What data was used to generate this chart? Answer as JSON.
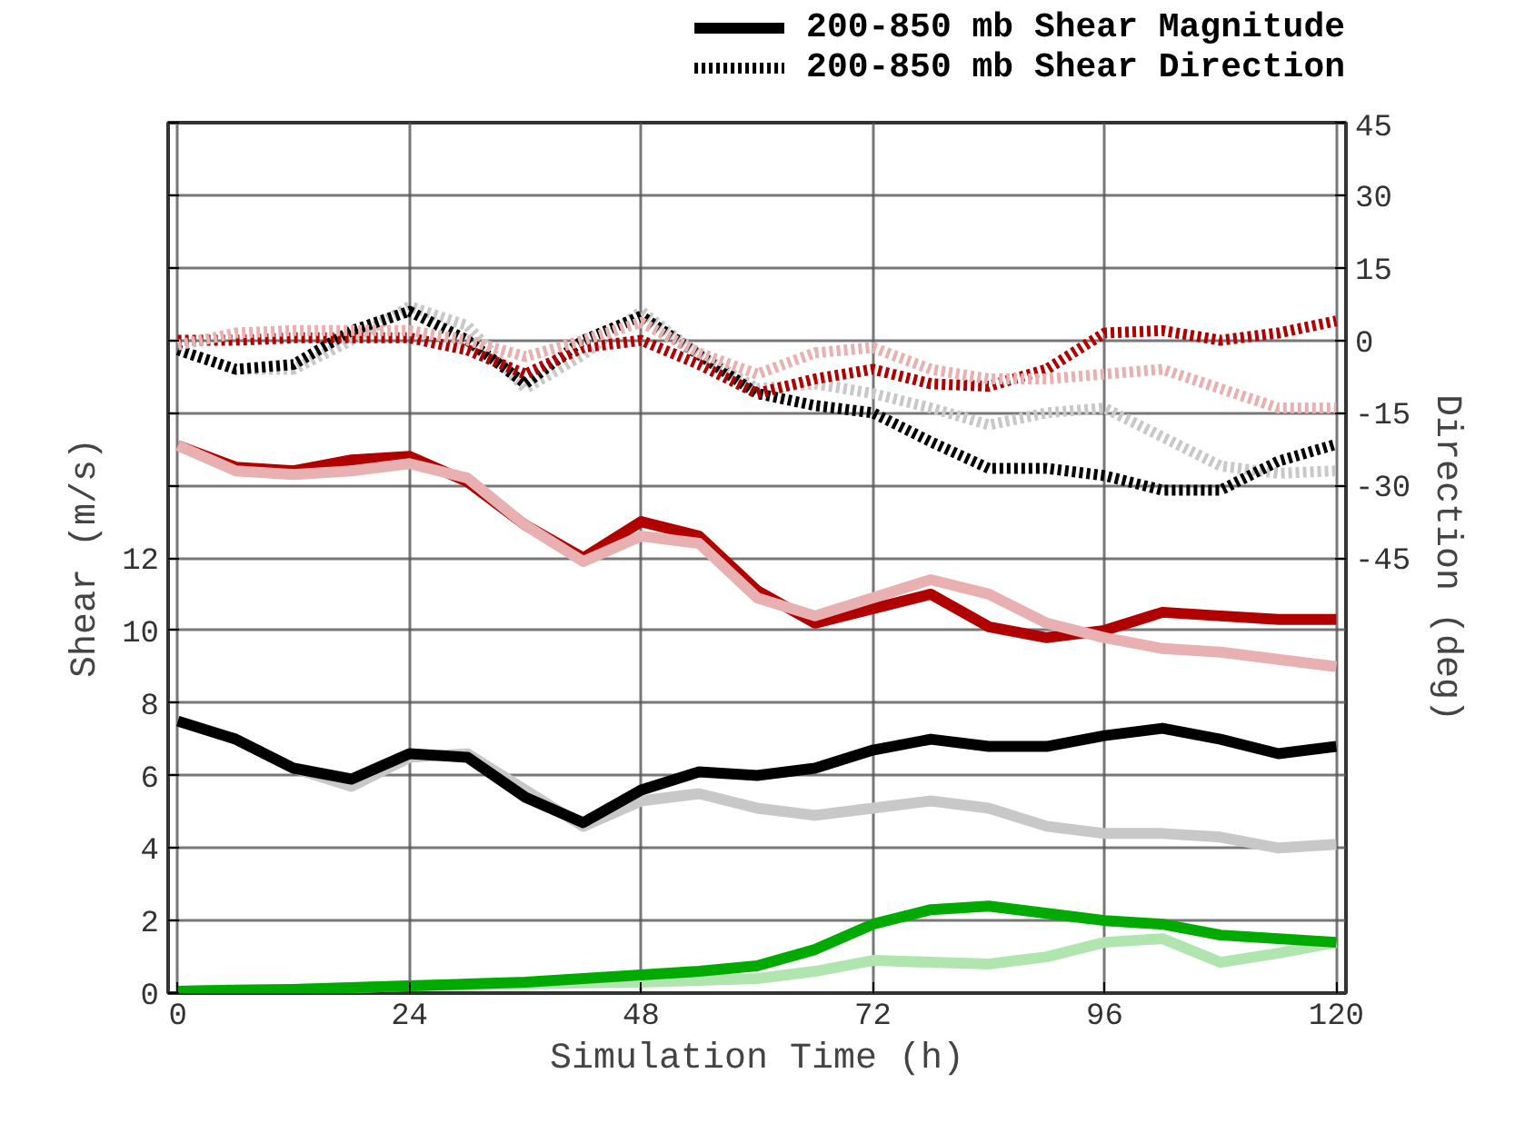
{
  "chart_data": {
    "type": "line",
    "xlabel": "Simulation Time (h)",
    "ylabel": "Shear (m/s)",
    "y2label": "Direction (deg)",
    "x": [
      0,
      6,
      12,
      18,
      24,
      30,
      36,
      42,
      48,
      54,
      60,
      66,
      72,
      78,
      84,
      90,
      96,
      102,
      108,
      114,
      120
    ],
    "xlim": [
      -1,
      121
    ],
    "xticks": [
      0,
      24,
      48,
      72,
      96,
      120
    ],
    "ylim": [
      0,
      24
    ],
    "yticks": [
      0,
      2,
      4,
      6,
      8,
      10,
      12,
      {
        "value": 14,
        "label": null
      },
      {
        "value": 16,
        "label": null
      },
      {
        "value": 18,
        "label": null
      },
      {
        "value": 20,
        "label": null
      },
      {
        "value": 22,
        "label": null
      },
      {
        "value": 24,
        "label": null
      }
    ],
    "y2lim": [
      -135,
      45
    ],
    "y2ticks": [
      -45,
      -30,
      -15,
      0,
      15,
      30,
      45
    ],
    "grid": true,
    "legend": "top",
    "series": [
      {
        "color": "#b00000",
        "line_style": "solid",
        "values": [
          15.1,
          14.5,
          14.4,
          14.7,
          14.8,
          14.1,
          12.9,
          12.0,
          13.0,
          12.6,
          11.1,
          10.2,
          10.6,
          11.0,
          10.1,
          9.8,
          10.0,
          10.5,
          10.4,
          10.3,
          10.3
        ]
      },
      {
        "color": "#e8b0b0",
        "line_style": "solid",
        "values": [
          15.1,
          14.4,
          14.3,
          14.4,
          14.6,
          14.2,
          12.9,
          11.9,
          12.6,
          12.4,
          10.9,
          10.4,
          10.9,
          11.4,
          11.0,
          10.2,
          9.8,
          9.5,
          9.4,
          9.2,
          9.0
        ]
      },
      {
        "color": "#c8c8c8",
        "line_style": "solid",
        "values": [
          7.5,
          7.0,
          6.2,
          5.7,
          6.5,
          6.6,
          5.6,
          4.6,
          5.3,
          5.5,
          5.1,
          4.9,
          5.1,
          5.3,
          5.1,
          4.6,
          4.4,
          4.4,
          4.3,
          4.0,
          4.1
        ]
      },
      {
        "name": "200-850 mb Shear Magnitude",
        "color": "#000000",
        "line_style": "solid",
        "values": [
          7.5,
          7.0,
          6.2,
          5.9,
          6.6,
          6.5,
          5.4,
          4.7,
          5.6,
          6.1,
          6.0,
          6.2,
          6.7,
          7.0,
          6.8,
          6.8,
          7.1,
          7.3,
          7.0,
          6.6,
          6.8
        ]
      },
      {
        "color": "#b0e5b0",
        "line_style": "solid",
        "values": [
          0.05,
          0.08,
          0.1,
          0.15,
          0.2,
          0.22,
          0.25,
          0.28,
          0.3,
          0.35,
          0.4,
          0.6,
          0.9,
          0.85,
          0.8,
          1.0,
          1.4,
          1.5,
          0.85,
          1.1,
          1.4
        ]
      },
      {
        "color": "#00aa00",
        "line_style": "solid",
        "values": [
          0.05,
          0.08,
          0.1,
          0.15,
          0.2,
          0.25,
          0.3,
          0.4,
          0.5,
          0.6,
          0.75,
          1.2,
          1.9,
          2.3,
          2.4,
          2.2,
          2.0,
          1.9,
          1.6,
          1.5,
          1.4
        ]
      },
      {
        "color": "#c8c8c8",
        "line_style": "dotted",
        "axis": "y2",
        "values": [
          -2,
          -6,
          -6,
          0,
          7,
          3,
          -10,
          -3,
          6,
          -3,
          -10,
          -9,
          -11,
          -14,
          -17.5,
          -15,
          -14,
          -20,
          -26,
          -27.5,
          -27
        ]
      },
      {
        "name": "200-850 mb Shear Direction",
        "color": "#000000",
        "line_style": "dotted",
        "axis": "y2",
        "values": [
          -2,
          -6,
          -5,
          2,
          6,
          0,
          -9,
          0,
          5,
          -3,
          -11,
          -13.5,
          -15,
          -21,
          -26.5,
          -26.5,
          -28,
          -31,
          -31,
          -25,
          -21.5
        ]
      },
      {
        "color": "#b00000",
        "line_style": "dotted",
        "axis": "y2",
        "values": [
          0,
          0,
          0.5,
          0.5,
          0.5,
          -2,
          -7,
          -1.5,
          0,
          -5,
          -11,
          -8,
          -6,
          -9,
          -9.5,
          -6,
          1.5,
          2,
          0,
          1.5,
          4
        ]
      },
      {
        "color": "#e8b0b0",
        "line_style": "dotted",
        "axis": "y2",
        "values": [
          -1,
          1.5,
          2,
          2,
          2,
          0,
          -3.4,
          0,
          3.7,
          -2.6,
          -7,
          -2.6,
          -1.5,
          -6,
          -8,
          -8,
          -7,
          -6,
          -10,
          -14,
          -14
        ]
      }
    ]
  }
}
